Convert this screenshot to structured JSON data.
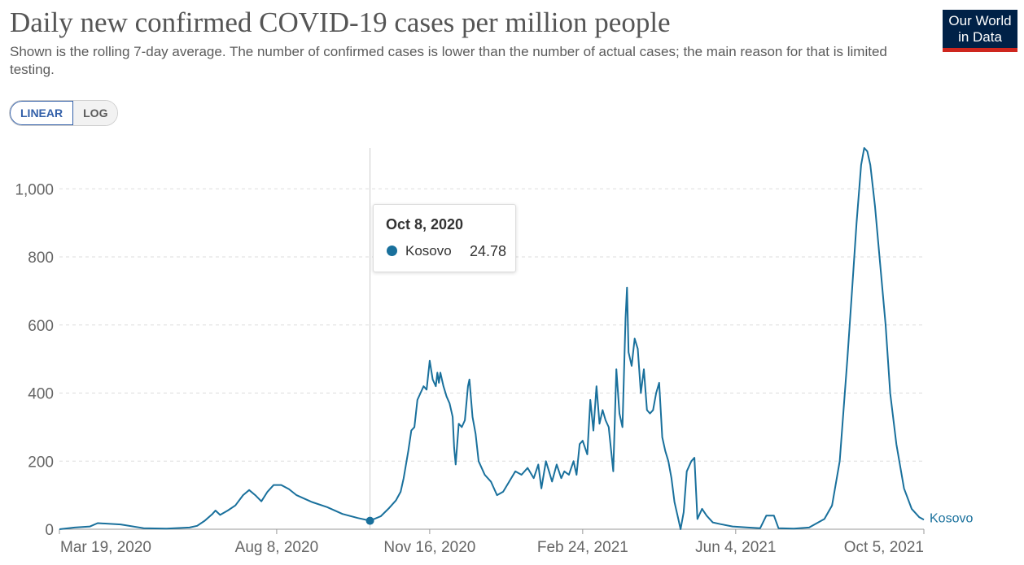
{
  "header": {
    "title": "Daily new confirmed COVID-19 cases per million people",
    "subtitle": "Shown is the rolling 7-day average. The number of confirmed cases is lower than the number of actual cases; the main reason for that is limited testing.",
    "logo_line1": "Our World",
    "logo_line2": "in Data"
  },
  "scale_toggle": {
    "linear_label": "LINEAR",
    "log_label": "LOG",
    "selected": "LINEAR"
  },
  "colors": {
    "series": "#19709c",
    "grid": "#dddddd",
    "axis_text": "#666666",
    "hover_line": "#cccccc"
  },
  "tooltip": {
    "date": "Oct 8, 2020",
    "entity": "Kosovo",
    "value": "24.78"
  },
  "chart_data": {
    "type": "line",
    "title": "Daily new confirmed COVID-19 cases per million people",
    "xlabel": "",
    "ylabel": "",
    "ylim": [
      0,
      1120
    ],
    "y_ticks": [
      0,
      200,
      400,
      600,
      800,
      1000
    ],
    "y_tick_labels": [
      "0",
      "200",
      "400",
      "600",
      "800",
      "1,000"
    ],
    "x_range_days": [
      0,
      565
    ],
    "x_ticks": [
      {
        "day": 0,
        "label": "Mar 19, 2020"
      },
      {
        "day": 142,
        "label": "Aug 8, 2020"
      },
      {
        "day": 242,
        "label": "Nov 16, 2020"
      },
      {
        "day": 342,
        "label": "Feb 24, 2021"
      },
      {
        "day": 442,
        "label": "Jun 4, 2021"
      },
      {
        "day": 565,
        "label": "Oct 5, 2021"
      }
    ],
    "x_unit": "days since Mar 19, 2020",
    "hover_day": 203,
    "series": [
      {
        "name": "Kosovo",
        "end_label": "Kosovo",
        "points": [
          [
            0,
            0
          ],
          [
            10,
            5
          ],
          [
            20,
            8
          ],
          [
            25,
            18
          ],
          [
            40,
            14
          ],
          [
            55,
            3
          ],
          [
            70,
            2
          ],
          [
            85,
            5
          ],
          [
            90,
            10
          ],
          [
            95,
            25
          ],
          [
            100,
            45
          ],
          [
            102,
            55
          ],
          [
            105,
            42
          ],
          [
            110,
            55
          ],
          [
            115,
            70
          ],
          [
            120,
            100
          ],
          [
            124,
            115
          ],
          [
            128,
            100
          ],
          [
            132,
            82
          ],
          [
            136,
            110
          ],
          [
            140,
            130
          ],
          [
            145,
            130
          ],
          [
            150,
            118
          ],
          [
            155,
            100
          ],
          [
            160,
            90
          ],
          [
            165,
            80
          ],
          [
            175,
            65
          ],
          [
            185,
            45
          ],
          [
            195,
            33
          ],
          [
            203,
            25
          ],
          [
            210,
            38
          ],
          [
            215,
            60
          ],
          [
            220,
            85
          ],
          [
            223,
            110
          ],
          [
            225,
            150
          ],
          [
            228,
            230
          ],
          [
            230,
            290
          ],
          [
            232,
            300
          ],
          [
            234,
            380
          ],
          [
            236,
            400
          ],
          [
            238,
            420
          ],
          [
            240,
            410
          ],
          [
            242,
            495
          ],
          [
            244,
            440
          ],
          [
            246,
            420
          ],
          [
            247,
            460
          ],
          [
            248,
            430
          ],
          [
            249,
            460
          ],
          [
            251,
            420
          ],
          [
            253,
            390
          ],
          [
            255,
            370
          ],
          [
            257,
            330
          ],
          [
            258,
            240
          ],
          [
            259,
            190
          ],
          [
            261,
            310
          ],
          [
            263,
            300
          ],
          [
            265,
            320
          ],
          [
            267,
            420
          ],
          [
            268,
            440
          ],
          [
            270,
            330
          ],
          [
            272,
            280
          ],
          [
            274,
            200
          ],
          [
            278,
            160
          ],
          [
            282,
            140
          ],
          [
            286,
            100
          ],
          [
            290,
            110
          ],
          [
            294,
            140
          ],
          [
            298,
            170
          ],
          [
            302,
            160
          ],
          [
            306,
            180
          ],
          [
            310,
            150
          ],
          [
            313,
            190
          ],
          [
            315,
            120
          ],
          [
            318,
            200
          ],
          [
            320,
            170
          ],
          [
            322,
            140
          ],
          [
            325,
            190
          ],
          [
            328,
            150
          ],
          [
            330,
            170
          ],
          [
            333,
            160
          ],
          [
            336,
            200
          ],
          [
            338,
            160
          ],
          [
            340,
            250
          ],
          [
            342,
            260
          ],
          [
            345,
            220
          ],
          [
            347,
            380
          ],
          [
            349,
            290
          ],
          [
            351,
            420
          ],
          [
            353,
            310
          ],
          [
            355,
            350
          ],
          [
            357,
            320
          ],
          [
            359,
            300
          ],
          [
            362,
            170
          ],
          [
            364,
            470
          ],
          [
            366,
            340
          ],
          [
            368,
            300
          ],
          [
            370,
            620
          ],
          [
            371,
            710
          ],
          [
            372,
            520
          ],
          [
            374,
            480
          ],
          [
            376,
            560
          ],
          [
            378,
            530
          ],
          [
            380,
            400
          ],
          [
            382,
            470
          ],
          [
            384,
            350
          ],
          [
            386,
            340
          ],
          [
            388,
            350
          ],
          [
            390,
            400
          ],
          [
            392,
            430
          ],
          [
            394,
            270
          ],
          [
            396,
            230
          ],
          [
            398,
            200
          ],
          [
            400,
            150
          ],
          [
            402,
            80
          ],
          [
            404,
            40
          ],
          [
            406,
            0
          ],
          [
            408,
            50
          ],
          [
            410,
            170
          ],
          [
            413,
            200
          ],
          [
            415,
            210
          ],
          [
            417,
            30
          ],
          [
            420,
            60
          ],
          [
            423,
            40
          ],
          [
            427,
            20
          ],
          [
            432,
            15
          ],
          [
            440,
            8
          ],
          [
            450,
            5
          ],
          [
            458,
            3
          ],
          [
            462,
            40
          ],
          [
            467,
            40
          ],
          [
            470,
            3
          ],
          [
            480,
            2
          ],
          [
            490,
            5
          ],
          [
            500,
            30
          ],
          [
            505,
            70
          ],
          [
            510,
            200
          ],
          [
            515,
            500
          ],
          [
            518,
            700
          ],
          [
            521,
            900
          ],
          [
            524,
            1070
          ],
          [
            526,
            1120
          ],
          [
            528,
            1110
          ],
          [
            530,
            1070
          ],
          [
            533,
            950
          ],
          [
            536,
            800
          ],
          [
            540,
            600
          ],
          [
            543,
            400
          ],
          [
            547,
            250
          ],
          [
            552,
            120
          ],
          [
            557,
            60
          ],
          [
            562,
            35
          ],
          [
            565,
            28
          ]
        ]
      }
    ]
  }
}
